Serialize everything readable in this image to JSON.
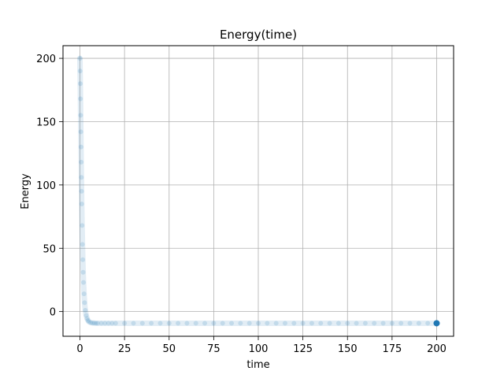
{
  "chart_data": {
    "type": "scatter",
    "title": "Energy(time)",
    "xlabel": "time",
    "ylabel": "Energy",
    "xlim": [
      -9.5,
      209.5
    ],
    "ylim": [
      -19.5,
      210
    ],
    "xticks": [
      0,
      25,
      50,
      75,
      100,
      125,
      150,
      175,
      200
    ],
    "yticks": [
      0,
      50,
      100,
      150,
      200
    ],
    "xtick_labels": [
      "0",
      "25",
      "50",
      "75",
      "100",
      "125",
      "150",
      "175",
      "200"
    ],
    "ytick_labels": [
      "0",
      "50",
      "100",
      "150",
      "200"
    ],
    "grid": true,
    "legend": "none",
    "marker_color": "#1f77b4",
    "series": [
      {
        "x": [
          0,
          0.1,
          0.2,
          0.3,
          0.4,
          0.5,
          0.6,
          0.7,
          0.8,
          0.9,
          1.0,
          1.2,
          1.4,
          1.6,
          1.8,
          2.0,
          2.3,
          2.6,
          3.0,
          3.5,
          4.0,
          4.5,
          5.0,
          6.0,
          7.0,
          8.0,
          9.0,
          10,
          12,
          14,
          16,
          18,
          20,
          25,
          30,
          35,
          40,
          45,
          50,
          55,
          60,
          65,
          70,
          75,
          80,
          85,
          90,
          95,
          100,
          105,
          110,
          115,
          120,
          125,
          130,
          135,
          140,
          145,
          150,
          155,
          160,
          165,
          170,
          175,
          180,
          185,
          190,
          195,
          200
        ],
        "y": [
          200,
          190,
          180,
          168,
          155,
          142,
          130,
          118,
          106,
          95,
          85,
          68,
          53,
          41,
          31,
          23,
          14,
          7,
          1,
          -3,
          -5.5,
          -7,
          -8,
          -8.7,
          -9,
          -9.1,
          -9.2,
          -9.2,
          -9.2,
          -9.2,
          -9.2,
          -9.2,
          -9.2,
          -9.2,
          -9.2,
          -9.2,
          -9.2,
          -9.2,
          -9.2,
          -9.2,
          -9.2,
          -9.2,
          -9.2,
          -9.2,
          -9.2,
          -9.2,
          -9.2,
          -9.2,
          -9.2,
          -9.2,
          -9.2,
          -9.2,
          -9.2,
          -9.2,
          -9.2,
          -9.2,
          -9.2,
          -9.2,
          -9.2,
          -9.2,
          -9.2,
          -9.2,
          -9.2,
          -9.2,
          -9.2,
          -9.2,
          -9.2,
          -9.2,
          -9.2
        ]
      }
    ]
  }
}
